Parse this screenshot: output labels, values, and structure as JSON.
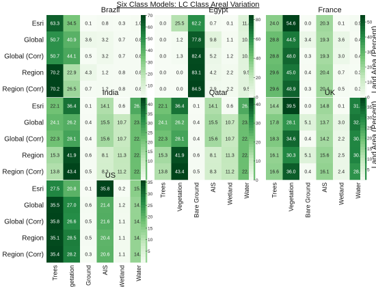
{
  "figure": {
    "title": "Six Class Models: LC Class Areal Variation",
    "side_label": "Land Area (Percent)"
  },
  "chart_data": [
    {
      "type": "heatmap",
      "title": "Brazil",
      "rows": [
        "Esri",
        "Global",
        "Global (Corr)",
        "Region",
        "Region (Corr)"
      ],
      "columns": [
        "Trees",
        "Vegetation",
        "Bare Ground",
        "AIS",
        "Wetland",
        "Water"
      ],
      "values": [
        [
          63.3,
          34.5,
          0.1,
          0.8,
          0.3,
          1.0
        ],
        [
          50.7,
          40.9,
          3.6,
          3.2,
          0.7,
          0.8
        ],
        [
          50.7,
          44.1,
          0.5,
          3.2,
          0.7,
          0.8
        ],
        [
          70.2,
          22.9,
          4.3,
          1.2,
          0.8,
          0.8
        ],
        [
          70.2,
          26.5,
          0.7,
          1.2,
          0.8,
          0.8
        ]
      ],
      "colorbar_ticks": [
        10,
        20,
        30,
        40,
        50,
        60,
        70
      ]
    },
    {
      "type": "heatmap",
      "title": "Egypt",
      "rows": [
        "Esri",
        "Global",
        "Global (Corr)",
        "Region",
        "Region (Corr)"
      ],
      "columns": [
        "Trees",
        "Vegetation",
        "Bare Ground",
        "AIS",
        "Wetland",
        "Water"
      ],
      "values": [
        [
          0.0,
          25.5,
          62.2,
          0.7,
          0.1,
          11.4
        ],
        [
          0.0,
          1.2,
          77.8,
          9.8,
          1.1,
          10.0
        ],
        [
          0.0,
          1.3,
          82.4,
          5.2,
          1.2,
          10.0
        ],
        [
          0.0,
          0.0,
          83.1,
          4.2,
          2.2,
          9.5
        ],
        [
          0.0,
          0.0,
          84.5,
          2.9,
          2.2,
          9.5
        ]
      ],
      "colorbar_ticks": [
        0,
        20,
        40,
        60,
        80
      ]
    },
    {
      "type": "heatmap",
      "title": "France",
      "rows": [
        "Esri",
        "Global",
        "Global (Corr)",
        "Region",
        "Region (Corr)"
      ],
      "columns": [
        "Trees",
        "Vegetation",
        "Bare Ground",
        "AIS",
        "Wetland",
        "Water"
      ],
      "values": [
        [
          24.0,
          54.6,
          0.0,
          20.3,
          0.1,
          0.9
        ],
        [
          28.8,
          44.5,
          3.4,
          19.3,
          3.6,
          0.4
        ],
        [
          28.8,
          48.0,
          0.3,
          19.3,
          3.0,
          0.4
        ],
        [
          29.6,
          45.0,
          0.4,
          20.4,
          0.7,
          0.3
        ],
        [
          29.6,
          48.9,
          0.3,
          20.4,
          0.5,
          0.3
        ]
      ],
      "colorbar_ticks": [
        0,
        10,
        20,
        30,
        40,
        50
      ]
    },
    {
      "type": "heatmap",
      "title": "India",
      "rows": [
        "Esri",
        "Global",
        "Global (Corr)",
        "Region",
        "Region (Corr)"
      ],
      "columns": [
        "Trees",
        "Vegetation",
        "Bare Ground",
        "AIS",
        "Wetland",
        "Water"
      ],
      "values": [
        [
          22.1,
          36.4,
          0.1,
          14.1,
          0.6,
          26.8
        ],
        [
          24.1,
          26.2,
          0.4,
          15.5,
          10.7,
          23.0
        ],
        [
          22.3,
          28.1,
          0.4,
          15.6,
          10.7,
          22.9
        ],
        [
          15.3,
          41.9,
          0.6,
          8.1,
          11.3,
          22.9
        ],
        [
          13.8,
          43.4,
          0.5,
          8.3,
          11.2,
          22.8
        ]
      ],
      "colorbar_ticks": [
        10,
        15,
        20,
        25,
        30,
        35,
        40
      ]
    },
    {
      "type": "heatmap",
      "title": "Qatar",
      "rows": [
        "Esri",
        "Global",
        "Global (Corr)",
        "Region",
        "Region (Corr)"
      ],
      "columns": [
        "Trees",
        "Vegetation",
        "Bare Ground",
        "AIS",
        "Wetland",
        "Water"
      ],
      "values": [
        [
          22.1,
          36.4,
          0.1,
          14.1,
          0.6,
          26.8
        ],
        [
          24.1,
          26.2,
          0.4,
          15.5,
          10.7,
          23.0
        ],
        [
          22.3,
          28.1,
          0.4,
          15.6,
          10.7,
          22.9
        ],
        [
          15.3,
          41.9,
          0.6,
          8.1,
          11.3,
          22.9
        ],
        [
          13.8,
          43.4,
          0.5,
          8.3,
          11.2,
          22.8
        ]
      ],
      "colorbar_ticks": [
        0,
        10,
        20,
        30,
        40
      ]
    },
    {
      "type": "heatmap",
      "title": "UK",
      "rows": [
        "Esri",
        "Global",
        "Global (Corr)",
        "Region",
        "Region (Corr)"
      ],
      "columns": [
        "Trees",
        "Vegetation",
        "Bare Ground",
        "AIS",
        "Wetland",
        "Water"
      ],
      "values": [
        [
          14.4,
          39.5,
          0.0,
          14.8,
          0.1,
          31.1
        ],
        [
          17.8,
          28.1,
          5.1,
          13.7,
          3.0,
          32.4
        ],
        [
          18.3,
          34.6,
          0.4,
          14.2,
          2.2,
          30.3
        ],
        [
          16.1,
          30.3,
          5.1,
          15.6,
          2.5,
          30.4
        ],
        [
          16.6,
          36.0,
          0.4,
          16.1,
          2.4,
          28.4
        ]
      ],
      "colorbar_ticks": [
        5,
        10,
        15,
        20,
        25,
        30,
        35
      ]
    },
    {
      "type": "heatmap",
      "title": "US",
      "rows": [
        "Esri",
        "Global",
        "Global (Corr)",
        "Region",
        "Region (Corr)"
      ],
      "columns": [
        "Trees",
        "Vegetation",
        "Bare Ground",
        "AIS",
        "Wetland",
        "Water"
      ],
      "values": [
        [
          27.5,
          20.8,
          0.1,
          35.8,
          0.2,
          15.6
        ],
        [
          35.5,
          27.0,
          0.6,
          21.4,
          1.2,
          14.3
        ],
        [
          35.8,
          26.6,
          0.5,
          21.6,
          1.1,
          14.4
        ],
        [
          35.1,
          28.5,
          0.5,
          20.4,
          1.1,
          14.4
        ],
        [
          35.4,
          28.2,
          0.3,
          20.6,
          1.1,
          14.4
        ]
      ],
      "colorbar_ticks": [
        5,
        10,
        15,
        20,
        25,
        30,
        35
      ]
    }
  ]
}
